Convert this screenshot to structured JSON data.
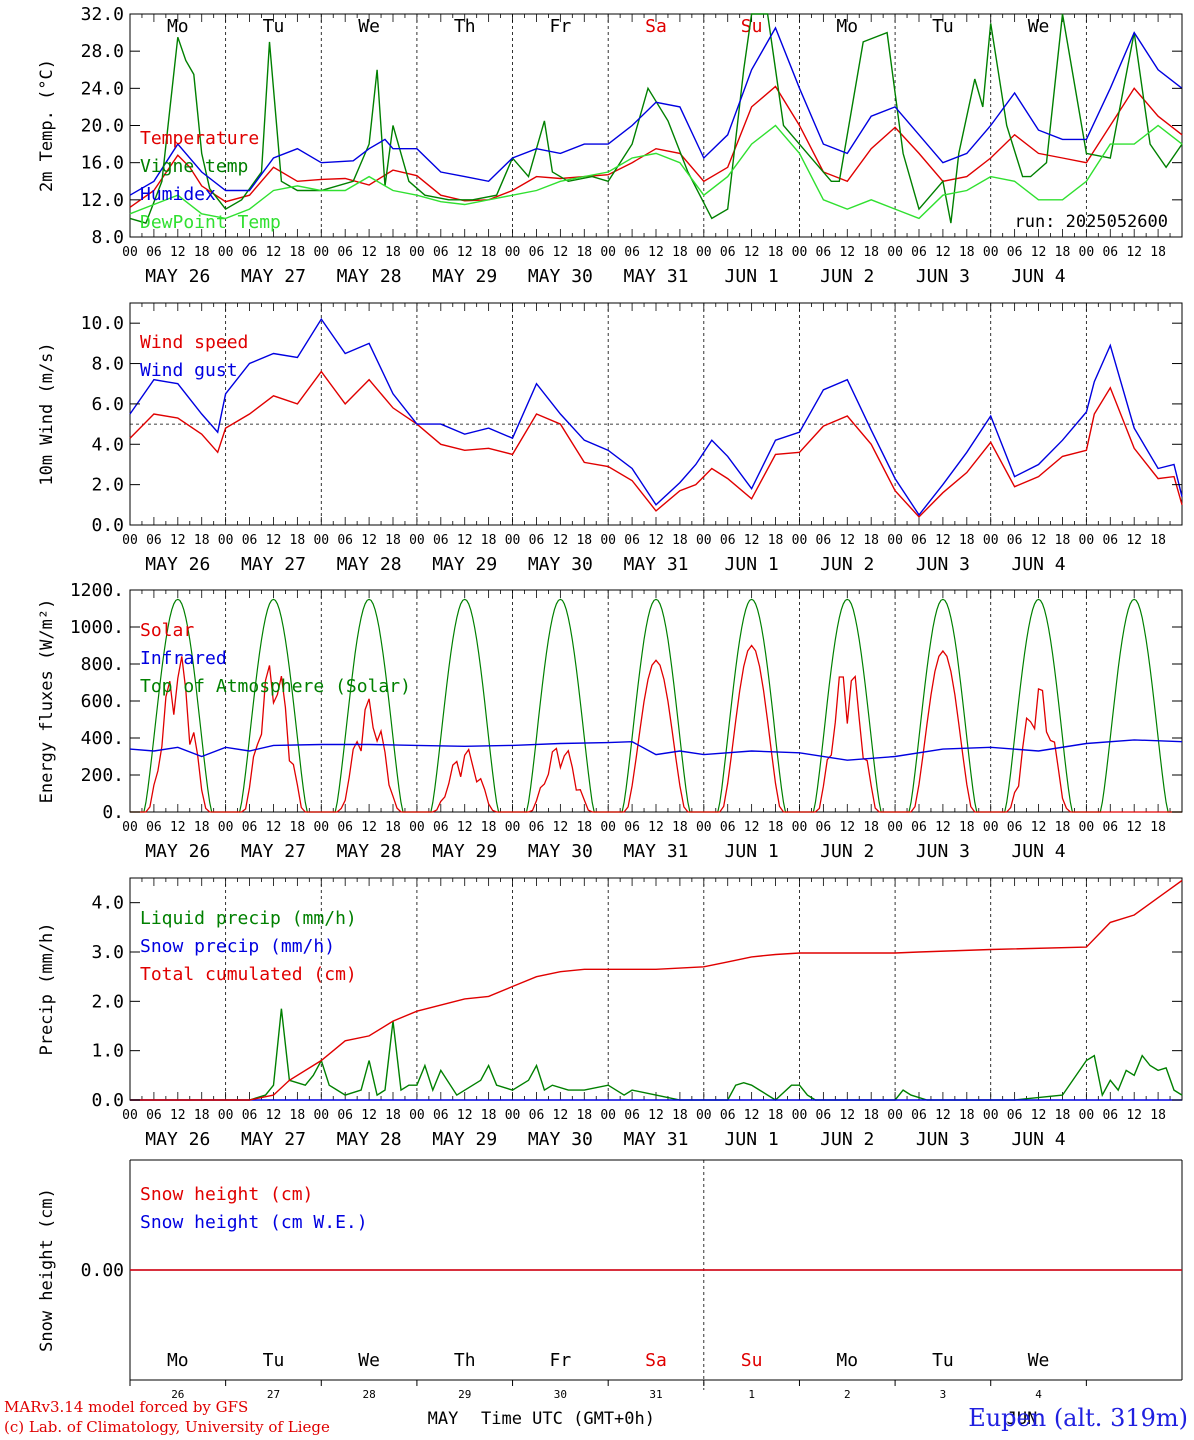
{
  "run_label": "run: 2025052600",
  "colors": {
    "red": "#e00000",
    "green": "#008000",
    "blue": "#0000e0",
    "lightgreen": "#30e030",
    "day_weekend": "#e00000"
  },
  "days": [
    {
      "abbr": "Mo",
      "date": "MAY 26",
      "num": "26",
      "weekend": false
    },
    {
      "abbr": "Tu",
      "date": "MAY 27",
      "num": "27",
      "weekend": false
    },
    {
      "abbr": "We",
      "date": "MAY 28",
      "num": "28",
      "weekend": false
    },
    {
      "abbr": "Th",
      "date": "MAY 29",
      "num": "29",
      "weekend": false
    },
    {
      "abbr": "Fr",
      "date": "MAY 30",
      "num": "30",
      "weekend": false
    },
    {
      "abbr": "Sa",
      "date": "MAY 31",
      "num": "31",
      "weekend": true
    },
    {
      "abbr": "Su",
      "date": "JUN  1",
      "num": "1",
      "weekend": true
    },
    {
      "abbr": "Mo",
      "date": "JUN  2",
      "num": "2",
      "weekend": false
    },
    {
      "abbr": "Tu",
      "date": "JUN  3",
      "num": "3",
      "weekend": false
    },
    {
      "abbr": "We",
      "date": "JUN  4",
      "num": "4",
      "weekend": false
    }
  ],
  "hour_ticks": [
    "00",
    "06",
    "12",
    "18"
  ],
  "month_labels": [
    "MAY",
    "JUN"
  ],
  "xlabel": "Time UTC (GMT+0h)",
  "footer": {
    "line1": "MARv3.14 model forced by GFS",
    "line2": "(c) Lab. of Climatology, University of Liege",
    "station": "Eupen (alt. 319m)"
  },
  "chart_data": [
    {
      "type": "line",
      "ylabel": "2m Temp. (°C)",
      "ylim": [
        8.0,
        32.0
      ],
      "yticks": [
        "8.0",
        "12.0",
        "16.0",
        "20.0",
        "24.0",
        "28.0",
        "32.0"
      ],
      "x_unit": "hours since MAY 26 00 UTC",
      "series": [
        {
          "name": "Temperature",
          "color": "red",
          "x": [
            0,
            6,
            12,
            15,
            18,
            24,
            30,
            36,
            42,
            48,
            54,
            60,
            66,
            72,
            78,
            84,
            90,
            96,
            102,
            108,
            114,
            120,
            126,
            132,
            138,
            144,
            150,
            156,
            162,
            168,
            174,
            180,
            186,
            192,
            198,
            204,
            210,
            216,
            222,
            228,
            234,
            240,
            246,
            252,
            258,
            264
          ],
          "y": [
            11.2,
            13.0,
            16.8,
            15.5,
            13.5,
            11.8,
            12.5,
            15.5,
            14.0,
            14.2,
            14.3,
            13.6,
            15.2,
            14.6,
            12.5,
            11.9,
            12.0,
            13.0,
            14.5,
            14.3,
            14.5,
            14.7,
            16.0,
            17.5,
            17.0,
            14.0,
            15.5,
            22.0,
            24.2,
            20.0,
            15.0,
            14.0,
            17.5,
            19.8,
            17.0,
            14.0,
            14.5,
            16.5,
            19.0,
            17.0,
            16.5,
            16.0,
            20.0,
            24.0,
            21.0,
            19.0
          ]
        },
        {
          "name": "Vigne temp",
          "color": "green",
          "x": [
            0,
            4,
            8,
            12,
            14,
            16,
            18,
            20,
            24,
            28,
            33,
            35,
            38,
            42,
            48,
            56,
            60,
            62,
            64,
            66,
            70,
            74,
            80,
            86,
            92,
            96,
            100,
            104,
            106,
            110,
            116,
            120,
            126,
            130,
            135,
            140,
            146,
            150,
            154,
            156,
            160,
            164,
            170,
            176,
            178,
            184,
            190,
            194,
            198,
            204,
            206,
            208,
            212,
            214,
            216,
            220,
            224,
            226,
            230,
            234,
            240,
            246,
            252,
            256,
            260,
            264
          ],
          "y": [
            10.0,
            9.5,
            14.0,
            29.5,
            27.0,
            25.5,
            17.0,
            13.2,
            11.0,
            12.0,
            15.0,
            29.0,
            14.0,
            13.0,
            13.0,
            14.0,
            18.0,
            26.0,
            13.5,
            20.0,
            14.0,
            12.5,
            12.0,
            12.0,
            12.5,
            16.5,
            14.5,
            20.5,
            15.0,
            14.0,
            14.5,
            14.0,
            18.0,
            24.0,
            20.5,
            15.0,
            10.0,
            11.0,
            26.0,
            32.0,
            32.0,
            20.0,
            17.0,
            14.0,
            14.0,
            29.0,
            30.0,
            17.0,
            11.0,
            14.0,
            9.5,
            17.0,
            25.0,
            22.0,
            31.0,
            20.0,
            14.5,
            14.5,
            16.0,
            32.0,
            17.0,
            16.5,
            30.0,
            18.0,
            15.5,
            18.0
          ]
        },
        {
          "name": "Humidex",
          "color": "blue",
          "x": [
            0,
            6,
            12,
            18,
            24,
            30,
            36,
            42,
            48,
            56,
            60,
            64,
            66,
            72,
            78,
            84,
            90,
            96,
            102,
            108,
            114,
            120,
            126,
            132,
            138,
            144,
            150,
            156,
            162,
            168,
            174,
            180,
            186,
            192,
            198,
            204,
            210,
            216,
            222,
            228,
            234,
            240,
            246,
            252,
            258,
            264
          ],
          "y": [
            12.5,
            14.0,
            18.0,
            15.0,
            13.0,
            13.0,
            16.5,
            17.5,
            16.0,
            16.2,
            17.5,
            18.5,
            17.5,
            17.5,
            15.0,
            14.5,
            14.0,
            16.5,
            17.5,
            17.0,
            18.0,
            18.0,
            20.0,
            22.5,
            22.0,
            16.5,
            19.0,
            26.0,
            30.5,
            24.0,
            18.0,
            17.0,
            21.0,
            22.0,
            19.0,
            16.0,
            17.0,
            20.0,
            23.5,
            19.5,
            18.5,
            18.5,
            24.0,
            30.0,
            26.0,
            24.0
          ]
        },
        {
          "name": "DewPoint Temp",
          "color": "lightgreen",
          "x": [
            0,
            6,
            12,
            18,
            24,
            30,
            36,
            42,
            48,
            54,
            60,
            66,
            72,
            78,
            84,
            90,
            96,
            102,
            108,
            114,
            120,
            126,
            132,
            138,
            144,
            150,
            156,
            162,
            168,
            174,
            180,
            186,
            192,
            198,
            204,
            210,
            216,
            222,
            228,
            234,
            240,
            246,
            252,
            258,
            264
          ],
          "y": [
            10.5,
            11.5,
            12.5,
            10.5,
            10.0,
            11.0,
            13.0,
            13.5,
            13.0,
            13.0,
            14.5,
            13.0,
            12.5,
            11.8,
            11.5,
            12.0,
            12.5,
            13.0,
            14.0,
            14.5,
            15.0,
            16.5,
            17.0,
            16.0,
            12.5,
            14.5,
            18.0,
            20.0,
            17.0,
            12.0,
            11.0,
            12.0,
            11.0,
            10.0,
            12.5,
            13.0,
            14.5,
            14.0,
            12.0,
            12.0,
            14.0,
            18.0,
            18.0,
            20.0,
            18.0
          ]
        }
      ],
      "run_label_shown": true
    },
    {
      "type": "line",
      "ylabel": "10m Wind (m/s)",
      "ylim": [
        0.0,
        11.0
      ],
      "yticks": [
        "0.0",
        "2.0",
        "4.0",
        "6.0",
        "8.0",
        "10.0"
      ],
      "reference_line": 5.0,
      "series": [
        {
          "name": "Wind speed",
          "color": "red",
          "x": [
            0,
            6,
            12,
            18,
            22,
            24,
            30,
            36,
            42,
            48,
            54,
            60,
            66,
            72,
            78,
            84,
            90,
            96,
            102,
            108,
            114,
            120,
            126,
            132,
            138,
            142,
            146,
            150,
            156,
            162,
            168,
            174,
            180,
            186,
            192,
            198,
            204,
            210,
            216,
            222,
            228,
            234,
            240,
            242,
            246,
            252,
            258,
            262,
            264
          ],
          "y": [
            4.3,
            5.5,
            5.3,
            4.5,
            3.6,
            4.8,
            5.5,
            6.4,
            6.0,
            7.6,
            6.0,
            7.2,
            5.8,
            5.0,
            4.0,
            3.7,
            3.8,
            3.5,
            5.5,
            5.0,
            3.1,
            2.9,
            2.2,
            0.7,
            1.7,
            2.0,
            2.8,
            2.3,
            1.3,
            3.5,
            3.6,
            4.9,
            5.4,
            4.0,
            1.7,
            0.4,
            1.6,
            2.6,
            4.1,
            1.9,
            2.4,
            3.4,
            3.7,
            5.5,
            6.8,
            3.8,
            2.3,
            2.4,
            1.0
          ]
        },
        {
          "name": "Wind gust",
          "color": "blue",
          "x": [
            0,
            6,
            12,
            18,
            22,
            24,
            30,
            36,
            42,
            48,
            54,
            60,
            66,
            72,
            78,
            84,
            90,
            96,
            102,
            108,
            114,
            120,
            126,
            132,
            138,
            142,
            146,
            150,
            156,
            162,
            168,
            174,
            180,
            186,
            192,
            198,
            204,
            210,
            216,
            222,
            228,
            234,
            240,
            242,
            246,
            252,
            258,
            262,
            264
          ],
          "y": [
            5.5,
            7.2,
            7.0,
            5.5,
            4.6,
            6.5,
            8.0,
            8.5,
            8.3,
            10.2,
            8.5,
            9.0,
            6.5,
            5.0,
            5.0,
            4.5,
            4.8,
            4.3,
            7.0,
            5.5,
            4.2,
            3.7,
            2.8,
            1.0,
            2.1,
            3.0,
            4.2,
            3.4,
            1.8,
            4.2,
            4.6,
            6.7,
            7.2,
            4.7,
            2.3,
            0.5,
            2.0,
            3.6,
            5.4,
            2.4,
            3.0,
            4.2,
            5.6,
            7.1,
            8.9,
            4.8,
            2.8,
            3.0,
            1.4
          ]
        }
      ]
    },
    {
      "type": "line",
      "ylabel": "Energy fluxes (W/m²)",
      "ylim": [
        0,
        1200
      ],
      "yticks": [
        "0.",
        "200.",
        "400.",
        "600.",
        "800.",
        "1000.",
        "1200."
      ],
      "series": [
        {
          "name": "Solar",
          "color": "red",
          "daily_peaks": [
            870,
            850,
            620,
            350,
            380,
            820,
            900,
            840,
            870,
            700
          ]
        },
        {
          "name": "Infrared",
          "color": "blue",
          "x": [
            0,
            6,
            12,
            18,
            24,
            30,
            36,
            48,
            60,
            72,
            84,
            96,
            108,
            120,
            126,
            132,
            138,
            144,
            156,
            168,
            180,
            192,
            204,
            216,
            228,
            240,
            252,
            264
          ],
          "y": [
            340,
            330,
            350,
            300,
            350,
            330,
            360,
            365,
            365,
            360,
            355,
            360,
            370,
            375,
            380,
            310,
            330,
            310,
            330,
            320,
            280,
            300,
            340,
            350,
            330,
            370,
            390,
            380
          ]
        },
        {
          "name": "Top of Atmosphere (Solar)",
          "color": "green",
          "daily_peak": 1150
        }
      ]
    },
    {
      "type": "line",
      "ylabel": "Precip (mm/h)",
      "ylim": [
        0.0,
        4.5
      ],
      "yticks": [
        "0.0",
        "1.0",
        "2.0",
        "3.0",
        "4.0"
      ],
      "series": [
        {
          "name": "Liquid precip (mm/h)",
          "color": "green",
          "x": [
            0,
            30,
            34,
            36,
            38,
            40,
            44,
            46,
            48,
            50,
            52,
            54,
            58,
            60,
            62,
            64,
            66,
            68,
            70,
            72,
            74,
            76,
            78,
            82,
            88,
            90,
            92,
            96,
            100,
            102,
            104,
            106,
            110,
            114,
            120,
            124,
            126,
            132,
            138,
            150,
            152,
            154,
            156,
            158,
            160,
            162,
            166,
            168,
            170,
            172,
            176,
            192,
            194,
            196,
            200,
            216,
            222,
            234,
            240,
            242,
            244,
            246,
            248,
            250,
            252,
            254,
            256,
            258,
            260,
            262,
            264
          ],
          "y": [
            0,
            0,
            0.1,
            0.3,
            1.85,
            0.4,
            0.3,
            0.5,
            0.8,
            0.3,
            0.2,
            0.1,
            0.2,
            0.8,
            0.1,
            0.2,
            1.6,
            0.2,
            0.3,
            0.3,
            0.7,
            0.2,
            0.6,
            0.1,
            0.4,
            0.7,
            0.3,
            0.2,
            0.4,
            0.7,
            0.2,
            0.3,
            0.2,
            0.2,
            0.3,
            0.1,
            0.2,
            0.1,
            0.0,
            0.0,
            0.3,
            0.35,
            0.3,
            0.2,
            0.1,
            0.0,
            0.3,
            0.3,
            0.1,
            0.0,
            0.0,
            0.0,
            0.2,
            0.1,
            0.0,
            0.0,
            0.0,
            0.1,
            0.8,
            0.9,
            0.1,
            0.4,
            0.2,
            0.6,
            0.5,
            0.9,
            0.7,
            0.6,
            0.65,
            0.2,
            0.1
          ]
        },
        {
          "name": "Snow precip (mm/h)",
          "color": "blue",
          "x": [
            0,
            264
          ],
          "y": [
            0,
            0
          ]
        },
        {
          "name": "Total cumulated (cm)",
          "color": "red",
          "x": [
            0,
            30,
            36,
            40,
            48,
            54,
            60,
            66,
            72,
            84,
            90,
            96,
            102,
            108,
            114,
            120,
            132,
            144,
            150,
            156,
            162,
            168,
            192,
            198,
            216,
            240,
            246,
            252,
            258,
            264
          ],
          "y": [
            0.0,
            0.0,
            0.1,
            0.4,
            0.8,
            1.2,
            1.3,
            1.6,
            1.8,
            2.05,
            2.1,
            2.3,
            2.5,
            2.6,
            2.65,
            2.65,
            2.65,
            2.7,
            2.8,
            2.9,
            2.95,
            2.98,
            2.98,
            3.0,
            3.05,
            3.1,
            3.6,
            3.75,
            4.1,
            4.45
          ]
        }
      ]
    },
    {
      "type": "line",
      "ylabel": "Snow height (cm)",
      "yticks": [
        "0.00"
      ],
      "series": [
        {
          "name": "Snow height (cm)",
          "color": "red",
          "x": [
            0,
            264
          ],
          "y": [
            0,
            0
          ]
        },
        {
          "name": "Snow height (cm W.E.)",
          "color": "blue",
          "x": [
            0,
            264
          ],
          "y": [
            0,
            0
          ]
        }
      ]
    }
  ]
}
